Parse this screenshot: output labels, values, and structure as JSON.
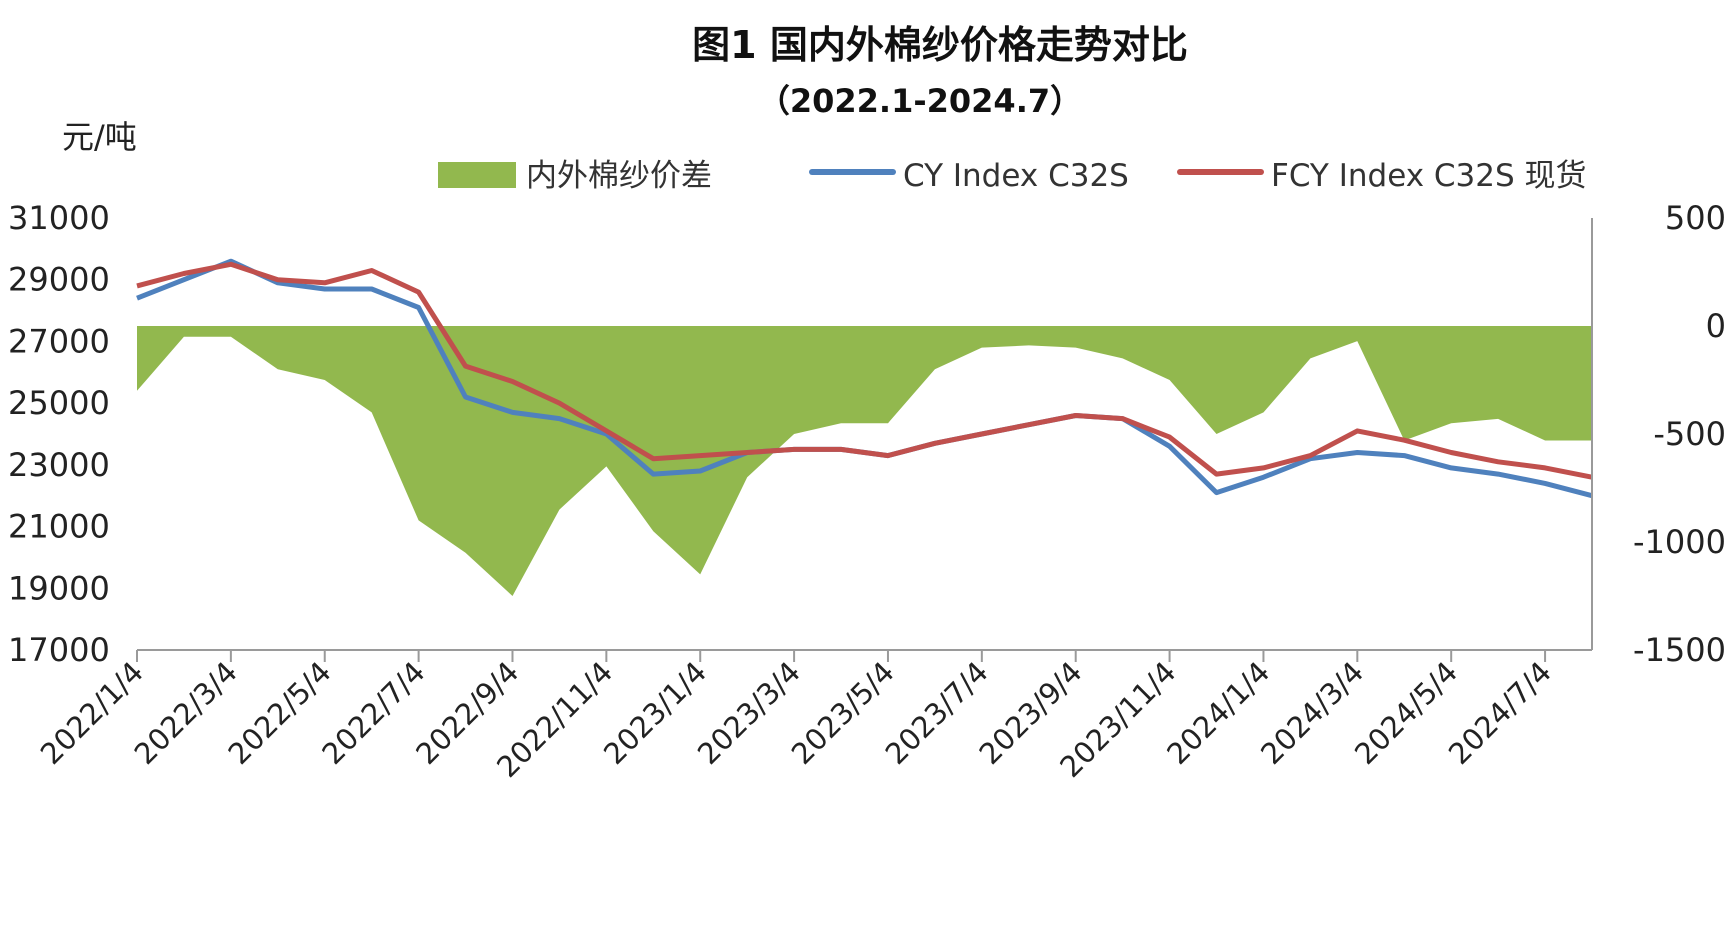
{
  "chart_data": {
    "type": "line",
    "title": "图1  国内外棉纱价格走势对比",
    "subtitle": "（2022.1-2024.7）",
    "ylabel": "元/吨",
    "ylim": [
      17000,
      31000
    ],
    "y_ticks": [
      "31000",
      "29000",
      "27000",
      "25000",
      "23000",
      "21000",
      "19000",
      "17000"
    ],
    "y2lim": [
      -1500,
      500
    ],
    "y2_ticks": [
      "500",
      "0",
      "-500",
      "-1000",
      "-1500"
    ],
    "x_tick_labels": [
      "2022/1/4",
      "2022/3/4",
      "2022/5/4",
      "2022/7/4",
      "2022/9/4",
      "2022/11/4",
      "2023/1/4",
      "2023/3/4",
      "2023/5/4",
      "2023/7/4",
      "2023/9/4",
      "2023/11/4",
      "2024/1/4",
      "2024/3/4",
      "2024/5/4",
      "2024/7/4"
    ],
    "grid": false,
    "legend_position": "top",
    "x": [
      "2022/1/4",
      "2022/2/4",
      "2022/3/4",
      "2022/4/4",
      "2022/5/4",
      "2022/6/4",
      "2022/7/4",
      "2022/8/4",
      "2022/9/4",
      "2022/10/4",
      "2022/11/4",
      "2022/12/4",
      "2023/1/4",
      "2023/2/4",
      "2023/3/4",
      "2023/4/4",
      "2023/5/4",
      "2023/6/4",
      "2023/7/4",
      "2023/8/4",
      "2023/9/4",
      "2023/10/4",
      "2023/11/4",
      "2023/12/4",
      "2024/1/4",
      "2024/2/4",
      "2024/3/4",
      "2024/4/4",
      "2024/5/4",
      "2024/6/4",
      "2024/7/4",
      "2024/7/31"
    ],
    "series": [
      {
        "name": "内外棉纱价差",
        "type": "area",
        "axis": "right",
        "color": "#92b84e",
        "values": [
          -300,
          -50,
          -50,
          -200,
          -250,
          -400,
          -900,
          -1050,
          -1250,
          -850,
          -650,
          -950,
          -1150,
          -700,
          -500,
          -450,
          -450,
          -200,
          -100,
          -90,
          -100,
          -150,
          -250,
          -500,
          -400,
          -150,
          -70,
          -530,
          -450,
          -430,
          -530,
          -530
        ]
      },
      {
        "name": "CY Index C32S",
        "type": "line",
        "axis": "left",
        "color": "#4f81bd",
        "values": [
          28400,
          29000,
          29600,
          28900,
          28700,
          28700,
          28100,
          25200,
          24700,
          24500,
          24000,
          22700,
          22800,
          23400,
          23500,
          23500,
          23300,
          23700,
          24000,
          24300,
          24600,
          24500,
          23600,
          22100,
          22600,
          23200,
          23400,
          23300,
          22900,
          22700,
          22400,
          22000
        ]
      },
      {
        "name": "FCY Index C32S 现货",
        "type": "line",
        "axis": "left",
        "color": "#c0504d",
        "values": [
          28800,
          29200,
          29500,
          29000,
          28900,
          29300,
          28600,
          26200,
          25700,
          25000,
          24100,
          23200,
          23300,
          23400,
          23500,
          23500,
          23300,
          23700,
          24000,
          24300,
          24600,
          24500,
          23900,
          22700,
          22900,
          23300,
          24100,
          23800,
          23400,
          23100,
          22900,
          22600
        ]
      }
    ]
  }
}
